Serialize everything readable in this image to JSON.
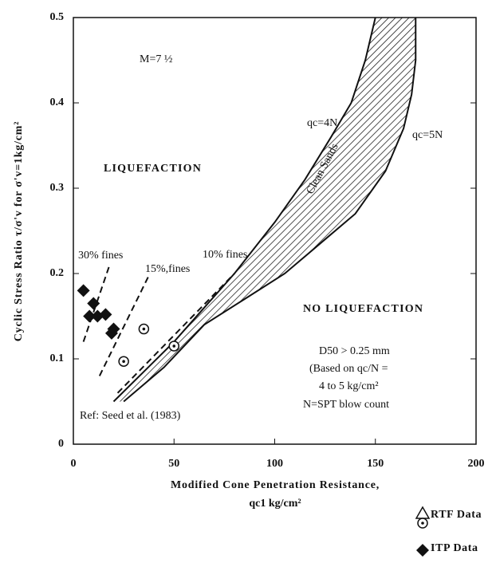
{
  "chart_data": {
    "type": "scatter",
    "xlabel": [
      "Modified Cone Penetration Resistance,",
      "qc1 kg/cm²"
    ],
    "ylabel": "Cyclic Stress Ratio τ/σ'v for σ'v=1kg/cm²",
    "xlim": [
      0,
      200
    ],
    "xticks": [
      0,
      50,
      100,
      150,
      200
    ],
    "ylim": [
      0,
      0.5
    ],
    "yticks": [
      0,
      0.1,
      0.2,
      0.3,
      0.4,
      0.5
    ],
    "series": [
      {
        "name": "RTF Data",
        "marker": "circle-dot",
        "color": "#111111",
        "x": [
          25,
          35,
          50
        ],
        "y": [
          0.097,
          0.135,
          0.115
        ]
      },
      {
        "name": "ITP Data",
        "marker": "diamond",
        "color": "#111111",
        "x": [
          5,
          8,
          10,
          12,
          16,
          19,
          20
        ],
        "y": [
          0.18,
          0.15,
          0.165,
          0.15,
          0.152,
          0.13,
          0.135
        ]
      }
    ],
    "curves": [
      {
        "style": "solid",
        "x": [
          20,
          35,
          50,
          65,
          80,
          100,
          115,
          128,
          138,
          145,
          150
        ],
        "y": [
          0.05,
          0.085,
          0.12,
          0.16,
          0.2,
          0.26,
          0.31,
          0.36,
          0.4,
          0.45,
          0.5
        ]
      },
      {
        "style": "solid",
        "x": [
          25,
          45,
          65,
          85,
          105,
          125,
          140,
          155,
          164,
          168,
          170,
          170
        ],
        "y": [
          0.05,
          0.09,
          0.14,
          0.17,
          0.2,
          0.24,
          0.27,
          0.32,
          0.37,
          0.41,
          0.45,
          0.5
        ]
      },
      {
        "style": "dashed",
        "x": [
          5,
          18
        ],
        "y": [
          0.12,
          0.21
        ]
      },
      {
        "style": "dashed",
        "x": [
          13,
          38
        ],
        "y": [
          0.08,
          0.2
        ]
      },
      {
        "style": "dashed",
        "x": [
          22,
          80
        ],
        "y": [
          0.06,
          0.2
        ]
      }
    ],
    "annotations": [
      "M=7 ½",
      "LIQUEFACTION",
      "NO LIQUEFACTION",
      "qc=4N",
      "qc=5N",
      "Clean Sands",
      "30% fines",
      "15%,fines",
      "10% fines",
      "D50 > 0.25 mm",
      "(Based on qc/N =",
      "4 to 5 kg/cm²",
      "N=SPT blow count",
      "Ref: Seed et al. (1983)"
    ]
  }
}
